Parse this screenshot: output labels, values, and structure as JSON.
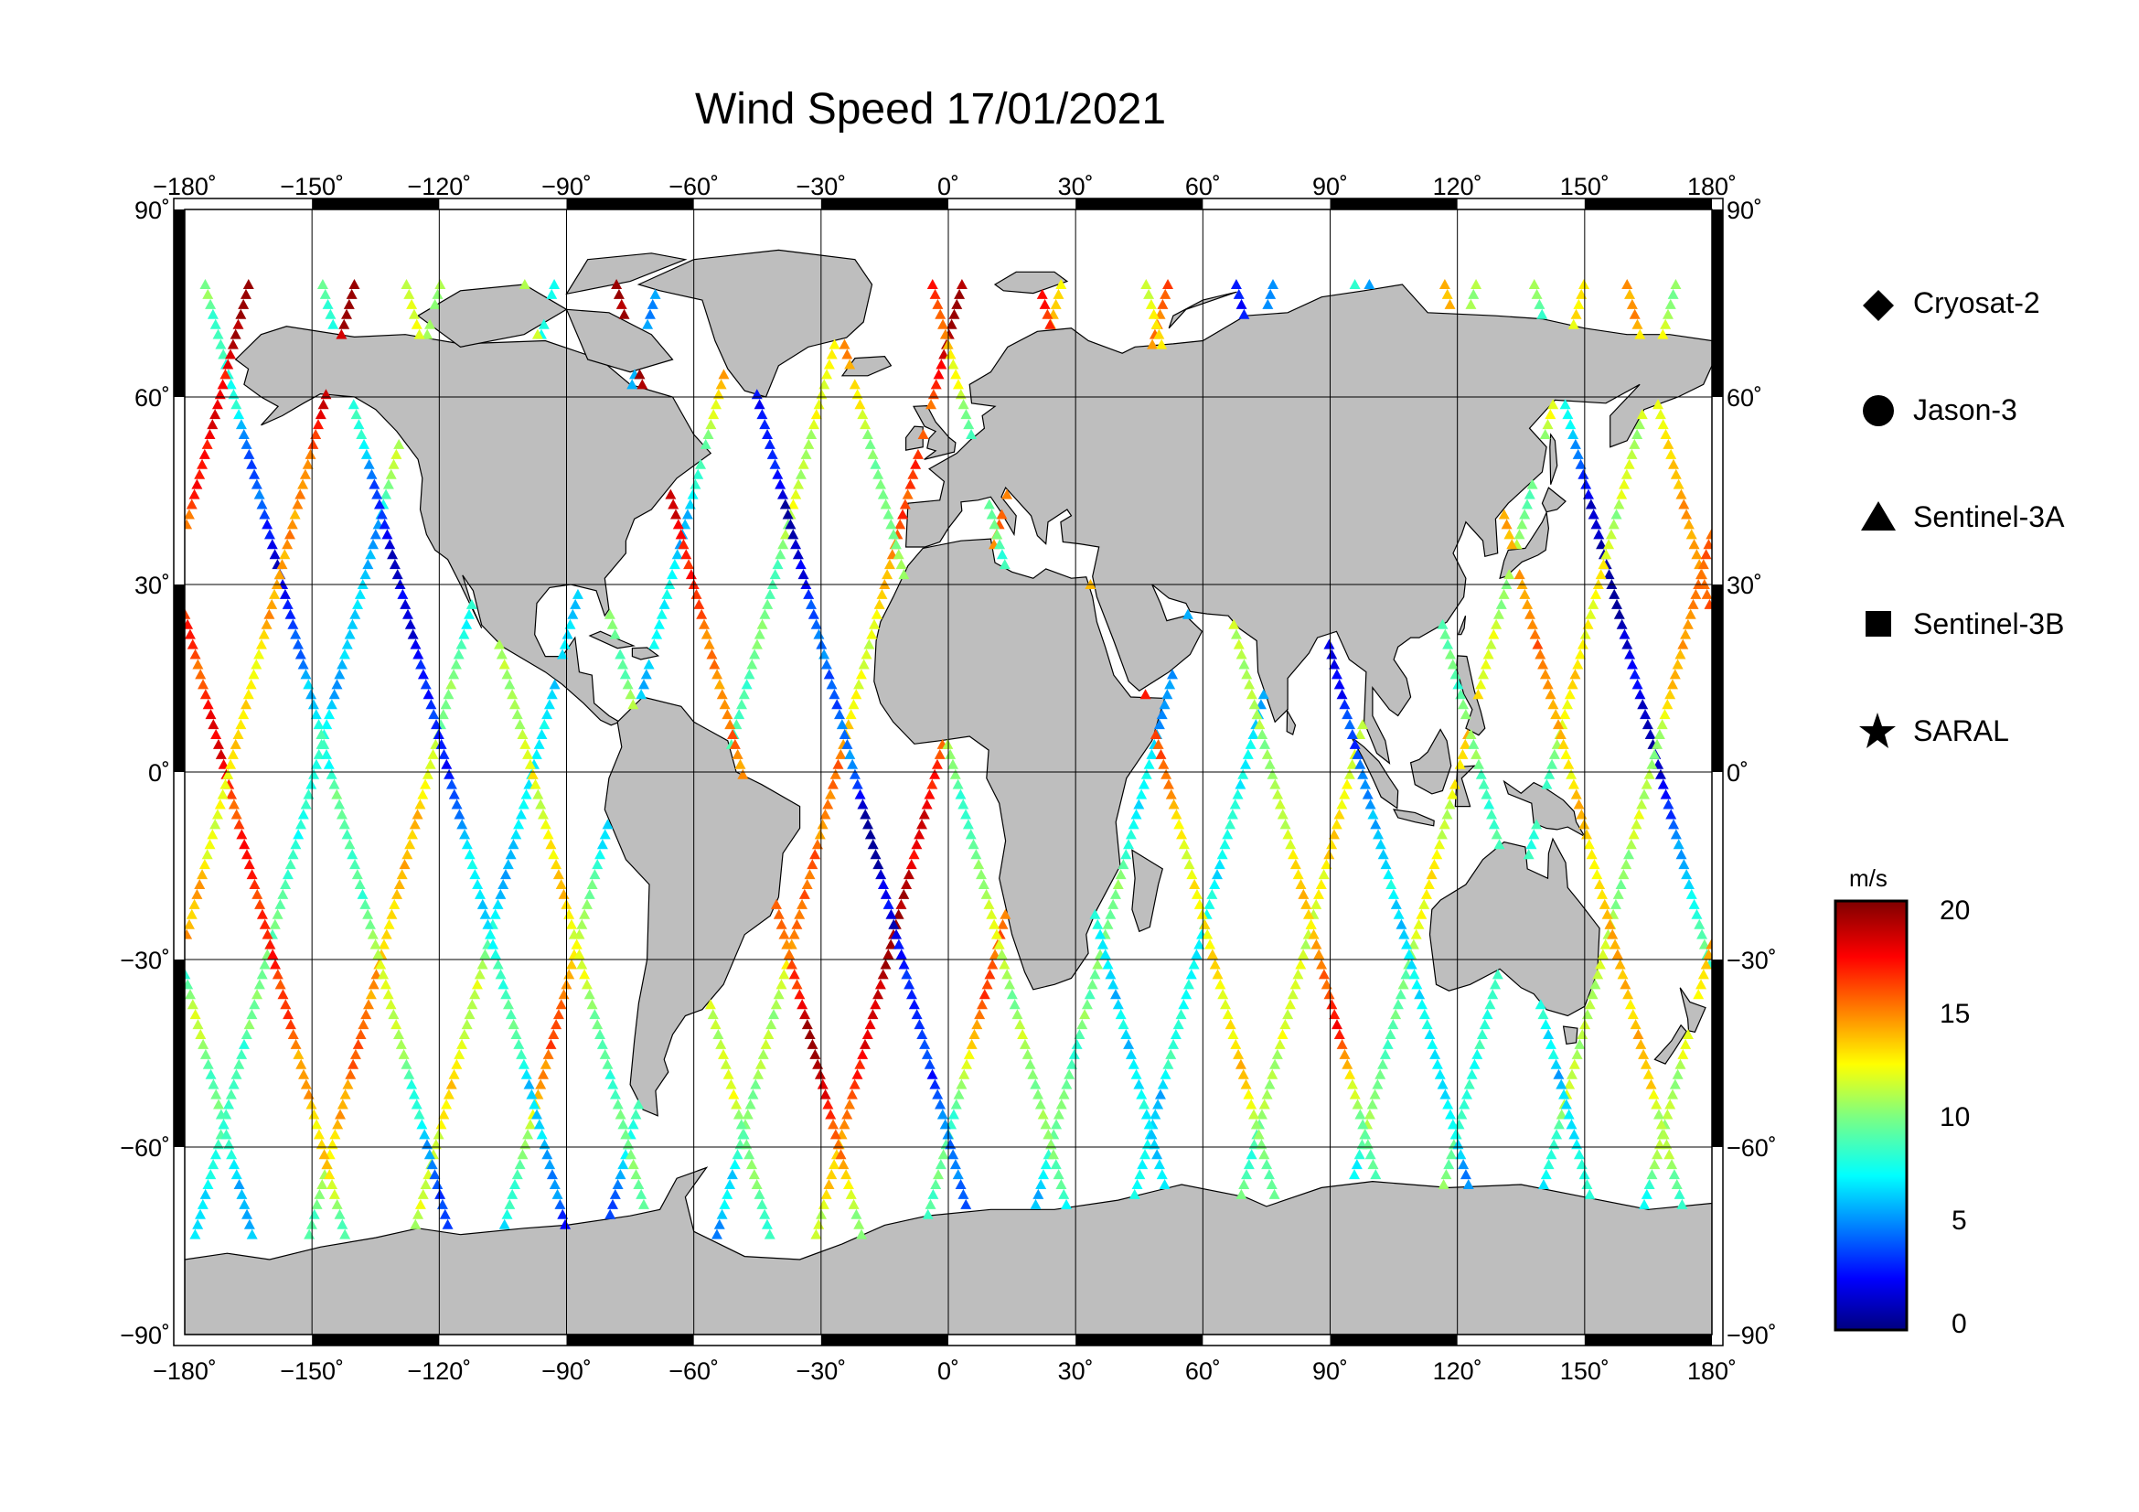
{
  "title": "Wind Speed 17/01/2021",
  "map": {
    "projection": "equirectangular",
    "lon_range": [
      -180,
      180
    ],
    "lat_range": [
      -90,
      90
    ],
    "lon_ticks": [
      "−180˚",
      "−150˚",
      "−120˚",
      "−90˚",
      "−60˚",
      "−30˚",
      "0˚",
      "30˚",
      "60˚",
      "90˚",
      "120˚",
      "150˚",
      "180˚"
    ],
    "lat_ticks": [
      "90˚",
      "60˚",
      "30˚",
      "0˚",
      "−30˚",
      "−60˚",
      "−90˚"
    ],
    "land_color": "#bebebe",
    "ocean_color": "#ffffff"
  },
  "legend": {
    "items": [
      {
        "label": "Cryosat-2",
        "marker": "diamond"
      },
      {
        "label": "Jason-3",
        "marker": "circle"
      },
      {
        "label": "Sentinel-3A",
        "marker": "triangle"
      },
      {
        "label": "Sentinel-3B",
        "marker": "square"
      },
      {
        "label": "SARAL",
        "marker": "star"
      }
    ]
  },
  "colorbar": {
    "unit": "m/s",
    "min": 0,
    "max": 20,
    "tick_labels": [
      "20",
      "15",
      "10",
      "5",
      "0"
    ],
    "colormap": "jet"
  }
}
